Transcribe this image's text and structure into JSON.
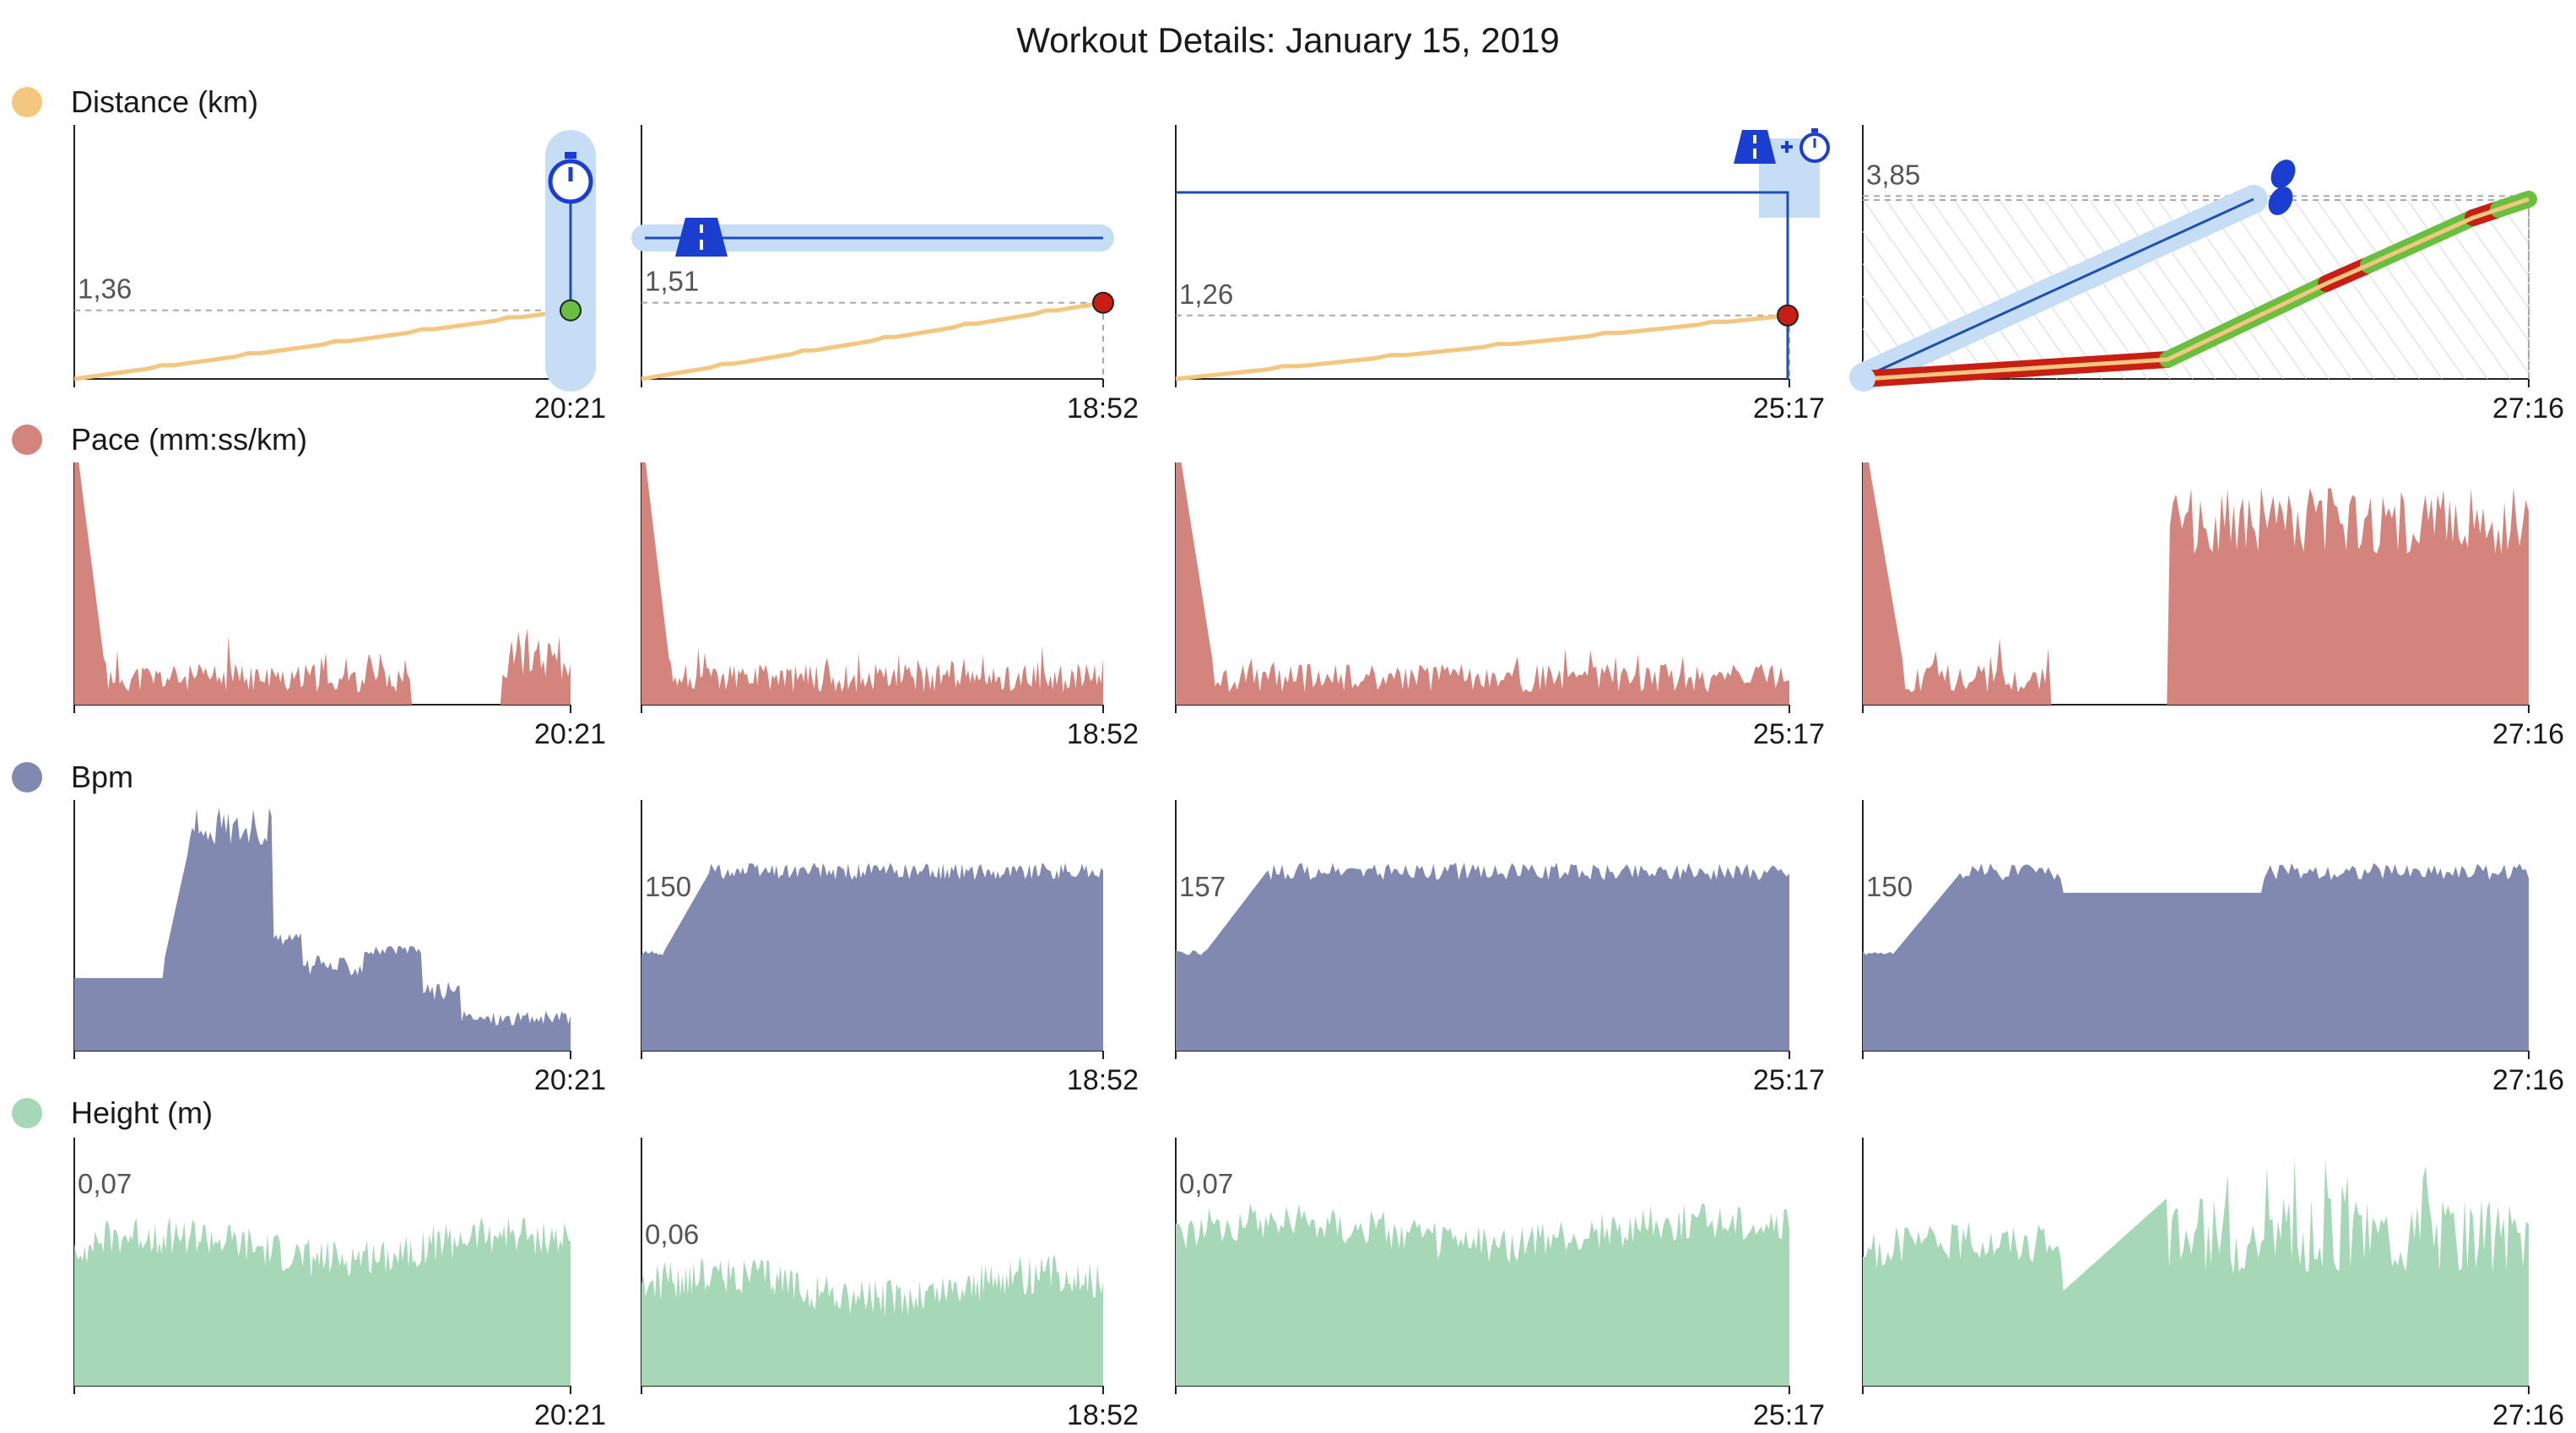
{
  "title": "Workout Details: January 15, 2019",
  "colors": {
    "distance": "#f3c77f",
    "pace": "#d2847d",
    "bpm": "#8189b0",
    "height": "#a6d8b7",
    "track": "#1f4fb5",
    "highlight": "#c6def5",
    "red_marker": "#c81e14",
    "green_marker": "#6abf40"
  },
  "rows": [
    {
      "key": "distance",
      "label": "Distance (km)",
      "color_key": "distance"
    },
    {
      "key": "pace",
      "label": "Pace (mm:ss/km)",
      "color_key": "pace"
    },
    {
      "key": "bpm",
      "label": "Bpm",
      "color_key": "bpm"
    },
    {
      "key": "height",
      "label": "Height (m)",
      "color_key": "height"
    }
  ],
  "workouts": [
    {
      "end_time": "20:21",
      "distance_final": "1,36",
      "bpm_label": "",
      "height_label": "0,07",
      "icon": "stopwatch-icon"
    },
    {
      "end_time": "18:52",
      "distance_final": "1,51",
      "bpm_label": "150",
      "height_label": "0,06",
      "icon": "road-icon"
    },
    {
      "end_time": "25:17",
      "distance_final": "1,26",
      "bpm_label": "157",
      "height_label": "0,07",
      "icon": "road-plus-stopwatch-icon"
    },
    {
      "end_time": "27:16",
      "distance_final": "3,85",
      "bpm_label": "150",
      "height_label": "",
      "icon": "footsteps-icon"
    }
  ],
  "chart_data": [
    {
      "type": "line",
      "title": "Workout Details: January 15, 2019",
      "ylabel": "Distance (km)",
      "series": [
        {
          "workout": 1,
          "x_end": "20:21",
          "y": [
            0,
            0.15,
            0.3,
            0.45,
            0.6,
            0.75,
            0.88,
            1.0,
            1.1,
            1.2,
            1.26,
            1.3,
            1.36
          ],
          "final": 1.36
        },
        {
          "workout": 2,
          "x_end": "18:52",
          "y": [
            0,
            0.13,
            0.26,
            0.39,
            0.52,
            0.65,
            0.78,
            0.91,
            1.04,
            1.17,
            1.3,
            1.4,
            1.51
          ],
          "final": 1.51
        },
        {
          "workout": 3,
          "x_end": "25:17",
          "y": [
            0,
            0.11,
            0.22,
            0.33,
            0.44,
            0.55,
            0.66,
            0.77,
            0.88,
            0.99,
            1.1,
            1.18,
            1.26
          ],
          "final": 1.26
        },
        {
          "workout": 4,
          "x_end": "27:16",
          "y": [
            0.05,
            0.2,
            0.35,
            0.55,
            1.0,
            1.45,
            1.9,
            2.35,
            2.8,
            3.2,
            3.55,
            3.85
          ],
          "final": 3.85
        }
      ]
    },
    {
      "type": "area",
      "ylabel": "Pace (mm:ss/km)",
      "series": [
        {
          "workout": 1,
          "x_end": "20:21",
          "shape": "spike-start-low",
          "gap": [
            0.68,
            0.86
          ]
        },
        {
          "workout": 2,
          "x_end": "18:52",
          "shape": "spike-start-low"
        },
        {
          "workout": 3,
          "x_end": "25:17",
          "shape": "spike-start-low"
        },
        {
          "workout": 4,
          "x_end": "27:16",
          "shape": "spike-start-low-then-high",
          "gap": [
            0.3,
            0.46
          ]
        }
      ]
    },
    {
      "type": "area",
      "ylabel": "Bpm",
      "series": [
        {
          "workout": 1,
          "x_end": "20:21",
          "values": []
        },
        {
          "workout": 2,
          "x_end": "18:52",
          "label": "150"
        },
        {
          "workout": 3,
          "x_end": "25:17",
          "label": "157"
        },
        {
          "workout": 4,
          "x_end": "27:16",
          "label": "150"
        }
      ]
    },
    {
      "type": "area",
      "ylabel": "Height (m)",
      "series": [
        {
          "workout": 1,
          "x_end": "20:21",
          "label": "0,07"
        },
        {
          "workout": 2,
          "x_end": "18:52",
          "label": "0,06"
        },
        {
          "workout": 3,
          "x_end": "25:17",
          "label": "0,07"
        },
        {
          "workout": 4,
          "x_end": "27:16"
        }
      ]
    }
  ]
}
